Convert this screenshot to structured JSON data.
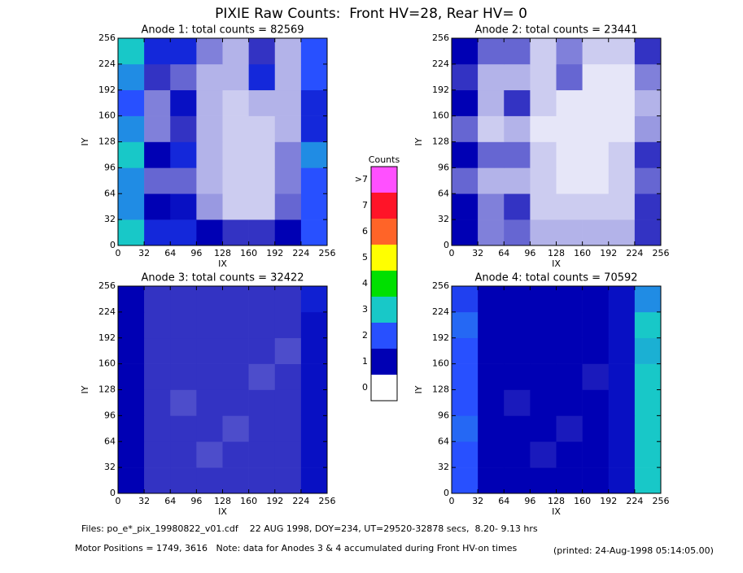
{
  "title": "PIXIE Raw Counts:  Front HV=28, Rear HV= 0",
  "chart_data": [
    {
      "type": "heatmap",
      "title": "Anode 1: total counts = 82569",
      "xlabel": "IX",
      "ylabel": "IY",
      "xlim": [
        0,
        256
      ],
      "ylim": [
        0,
        256
      ],
      "xticks": [
        0,
        32,
        64,
        96,
        128,
        160,
        192,
        224,
        256
      ],
      "yticks": [
        0,
        32,
        64,
        96,
        128,
        160,
        192,
        224,
        256
      ],
      "z": [
        [
          3,
          1.5,
          1.5,
          1,
          0.8,
          0.8,
          1,
          2
        ],
        [
          2.5,
          1,
          1.2,
          0.4,
          0.2,
          0.2,
          0.6,
          2
        ],
        [
          2.5,
          0.6,
          0.6,
          0.3,
          0.2,
          0.2,
          0.5,
          2
        ],
        [
          3,
          1,
          1.5,
          0.3,
          0.2,
          0.2,
          0.5,
          2.5
        ],
        [
          2.5,
          0.5,
          0.8,
          0.3,
          0.2,
          0.2,
          0.3,
          1.5
        ],
        [
          2,
          0.5,
          1.2,
          0.3,
          0.2,
          0.3,
          0.3,
          1.5
        ],
        [
          2.5,
          0.8,
          0.6,
          0.3,
          0.3,
          1.5,
          0.3,
          2
        ],
        [
          3,
          1.5,
          1.5,
          0.5,
          0.3,
          0.8,
          0.3,
          2
        ]
      ]
    },
    {
      "type": "heatmap",
      "title": "Anode 2: total counts = 23441",
      "xlabel": "IX",
      "ylabel": "IY",
      "xlim": [
        0,
        256
      ],
      "ylim": [
        0,
        256
      ],
      "xticks": [
        0,
        32,
        64,
        96,
        128,
        160,
        192,
        224,
        256
      ],
      "yticks": [
        0,
        32,
        64,
        96,
        128,
        160,
        192,
        224,
        256
      ],
      "z": [
        [
          1,
          0.5,
          0.6,
          0.3,
          0.3,
          0.3,
          0.3,
          0.8
        ],
        [
          1,
          0.5,
          0.8,
          0.2,
          0.2,
          0.2,
          0.2,
          0.8
        ],
        [
          0.6,
          0.3,
          0.3,
          0.2,
          0.1,
          0.1,
          0.2,
          0.6
        ],
        [
          1,
          0.6,
          0.6,
          0.2,
          0.1,
          0.1,
          0.2,
          0.8
        ],
        [
          0.6,
          0.2,
          0.3,
          0.1,
          0.1,
          0.1,
          0.1,
          0.4
        ],
        [
          1,
          0.3,
          0.8,
          0.2,
          0.1,
          0.1,
          0.1,
          0.3
        ],
        [
          0.8,
          0.3,
          0.3,
          0.2,
          0.6,
          0.1,
          0.1,
          0.5
        ],
        [
          1,
          0.6,
          0.6,
          0.2,
          0.5,
          0.2,
          0.2,
          0.8
        ]
      ]
    },
    {
      "type": "heatmap",
      "title": "Anode 3: total counts = 32422",
      "xlabel": "IX",
      "ylabel": "IY",
      "xlim": [
        0,
        256
      ],
      "ylim": [
        0,
        256
      ],
      "xticks": [
        0,
        32,
        64,
        96,
        128,
        160,
        192,
        224,
        256
      ],
      "yticks": [
        0,
        32,
        64,
        96,
        128,
        160,
        192,
        224,
        256
      ],
      "z": [
        [
          1,
          0.8,
          0.8,
          0.8,
          0.8,
          0.8,
          0.8,
          1.2
        ],
        [
          1,
          0.8,
          0.8,
          0.7,
          0.8,
          0.8,
          0.8,
          1.2
        ],
        [
          1,
          0.8,
          0.8,
          0.8,
          0.7,
          0.8,
          0.8,
          1.2
        ],
        [
          1,
          0.8,
          0.7,
          0.8,
          0.8,
          0.8,
          0.8,
          1.2
        ],
        [
          1,
          0.8,
          0.8,
          0.8,
          0.8,
          0.7,
          0.8,
          1.2
        ],
        [
          1,
          0.8,
          0.8,
          0.8,
          0.8,
          0.8,
          0.7,
          1.2
        ],
        [
          1,
          0.8,
          0.8,
          0.8,
          0.8,
          0.8,
          0.8,
          1.2
        ],
        [
          1,
          0.8,
          0.8,
          0.8,
          0.8,
          0.8,
          0.8,
          1.4
        ]
      ]
    },
    {
      "type": "heatmap",
      "title": "Anode 4: total counts = 70592",
      "xlabel": "IX",
      "ylabel": "IY",
      "xlim": [
        0,
        256
      ],
      "ylim": [
        0,
        256
      ],
      "xticks": [
        0,
        32,
        64,
        96,
        128,
        160,
        192,
        224,
        256
      ],
      "yticks": [
        0,
        32,
        64,
        96,
        128,
        160,
        192,
        224,
        256
      ],
      "z": [
        [
          2,
          1,
          1,
          1,
          1,
          1,
          1.2,
          3
        ],
        [
          2,
          1,
          1,
          0.9,
          1,
          1,
          1.2,
          3
        ],
        [
          2.2,
          1,
          1,
          1,
          0.9,
          1,
          1.2,
          3
        ],
        [
          2,
          1,
          0.9,
          1,
          1,
          1,
          1.2,
          3
        ],
        [
          2,
          1,
          1,
          1,
          1,
          0.9,
          1.2,
          3
        ],
        [
          2,
          1,
          1,
          1,
          1,
          1,
          1.2,
          2.8
        ],
        [
          2.2,
          1,
          1,
          1,
          1,
          1,
          1.2,
          3
        ],
        [
          1.8,
          1,
          1,
          1,
          1,
          1,
          1.2,
          2.5
        ]
      ]
    }
  ],
  "colorbar": {
    "title": "Counts",
    "levels": [
      {
        "label": "0",
        "color": "#ffffff"
      },
      {
        "label": "1",
        "color": "#0000b4"
      },
      {
        "label": "2",
        "color": "#2850ff"
      },
      {
        "label": "3",
        "color": "#18c8c8"
      },
      {
        "label": "4",
        "color": "#00e000"
      },
      {
        "label": "5",
        "color": "#ffff00"
      },
      {
        "label": "6",
        "color": "#ff6428"
      },
      {
        "label": "7",
        "color": "#ff1428"
      },
      {
        "label": ">7",
        "color": "#ff50ff"
      }
    ]
  },
  "footer": {
    "files": "Files: po_e*_pix_19980822_v01.cdf    22 AUG 1998, DOY=234, UT=29520-32878 secs,  8.20- 9.13 hrs",
    "note": "Motor Positions = 1749, 3616   Note: data for Anodes 3 & 4 accumulated during Front HV-on times",
    "printed": "(printed: 24-Aug-1998 05:14:05.00)"
  }
}
